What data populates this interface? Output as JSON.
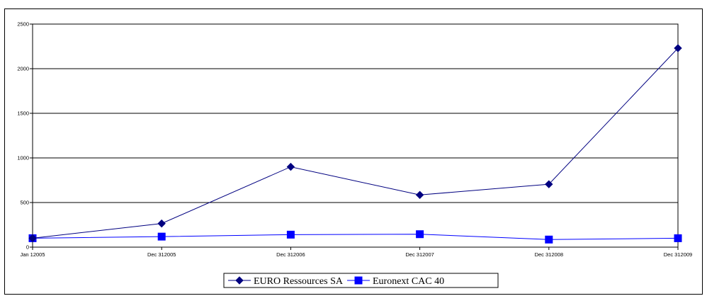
{
  "chart_data": {
    "type": "line",
    "title": "",
    "xlabel": "",
    "ylabel": "",
    "categories": [
      "Jan 12005",
      "Dec 312005",
      "Dec 312006",
      "Dec 312007",
      "Dec 312008",
      "Dec 312009"
    ],
    "ylim": [
      0,
      2500
    ],
    "yticks": [
      0,
      500,
      1000,
      1500,
      2000,
      2500
    ],
    "grid": true,
    "legend_position": "bottom-center",
    "series": [
      {
        "name": "EURO Ressources SA",
        "values": [
          100,
          265,
          900,
          585,
          705,
          2230
        ],
        "color": "#000080",
        "marker": "diamond"
      },
      {
        "name": "Euronext CAC 40",
        "values": [
          100,
          118,
          140,
          145,
          85,
          100
        ],
        "color": "#0000ff",
        "marker": "square"
      }
    ]
  }
}
